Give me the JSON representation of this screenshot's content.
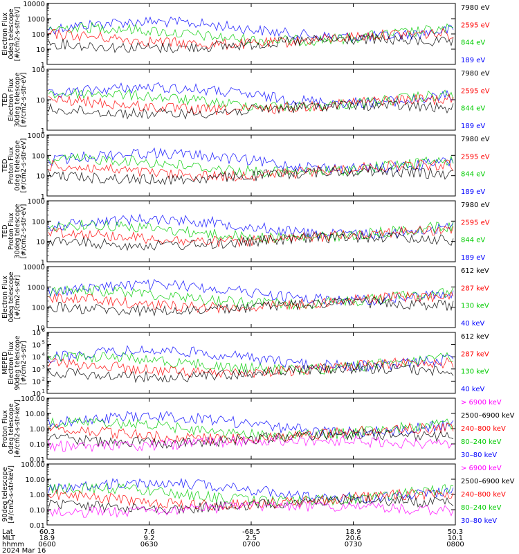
{
  "chart_data": [
    {
      "type": "line",
      "ylabel": [
        "Electron Flux",
        "0deg telescope",
        "[#/cm2-s-str-eV]"
      ],
      "yscale": "log",
      "ylim": [
        1,
        10000
      ],
      "ytick_labels": [
        "10000",
        "1000",
        "100",
        "10",
        "1"
      ],
      "legend": [
        {
          "label": "7980 eV",
          "color": "#000000"
        },
        {
          "label": "2595 eV",
          "color": "#ff0000"
        },
        {
          "label": "844 eV",
          "color": "#00cc00"
        },
        {
          "label": "189 eV",
          "color": "#0000ff"
        }
      ]
    },
    {
      "type": "line",
      "ylabel": [
        "TED",
        "Electron Flux",
        "30deg telescope",
        "[#/cm2-s-str-eV]"
      ],
      "yscale": "log",
      "ylim": [
        1,
        1000
      ],
      "ytick_labels": [
        "100",
        "10",
        "1"
      ],
      "legend": [
        {
          "label": "7980 eV",
          "color": "#000000"
        },
        {
          "label": "2595 eV",
          "color": "#ff0000"
        },
        {
          "label": "844 eV",
          "color": "#00cc00"
        },
        {
          "label": "189 eV",
          "color": "#0000ff"
        }
      ]
    },
    {
      "type": "line",
      "ylabel": [
        "TED",
        "Proton Flux",
        "0deg telescope",
        "[#/cm2-s-str-eV]"
      ],
      "yscale": "log",
      "ylim": [
        1,
        1000
      ],
      "ytick_labels": [
        "1000",
        "100",
        "10",
        "1"
      ],
      "legend": [
        {
          "label": "7980 eV",
          "color": "#000000"
        },
        {
          "label": "2595 eV",
          "color": "#ff0000"
        },
        {
          "label": "844 eV",
          "color": "#00cc00"
        },
        {
          "label": "189 eV",
          "color": "#0000ff"
        }
      ]
    },
    {
      "type": "line",
      "ylabel": [
        "TED",
        "Proton Flux",
        "30deg telescope",
        "[#/cm2-s-str-eV]"
      ],
      "yscale": "log",
      "ylim": [
        1,
        1000
      ],
      "ytick_labels": [
        "1000",
        "100",
        "10",
        "1"
      ],
      "legend": [
        {
          "label": "7980 eV",
          "color": "#000000"
        },
        {
          "label": "2595 eV",
          "color": "#ff0000"
        },
        {
          "label": "844 eV",
          "color": "#00cc00"
        },
        {
          "label": "189 eV",
          "color": "#0000ff"
        }
      ]
    },
    {
      "type": "line",
      "ylabel": [
        "Electron Flux",
        "0deg telescope",
        "[#/cm2-s-str]"
      ],
      "yscale": "log",
      "ylim": [
        10,
        10000
      ],
      "ytick_labels": [
        "10000",
        "1000",
        "100",
        "10"
      ],
      "legend": [
        {
          "label": "612 keV",
          "color": "#000000"
        },
        {
          "label": "287 keV",
          "color": "#ff0000"
        },
        {
          "label": "130 keV",
          "color": "#00cc00"
        },
        {
          "label": "40 keV",
          "color": "#0000ff"
        }
      ]
    },
    {
      "type": "line",
      "ylabel": [
        "MEPED",
        "Electron Flux",
        "90deg telescope",
        "[#/cm2-s-str]"
      ],
      "yscale": "log",
      "ylim": [
        10,
        1000000
      ],
      "ytick_labels": [
        "10",
        "10",
        "10",
        "10",
        "10",
        "10"
      ],
      "ytick_exponents": [
        "6",
        "5",
        "4",
        "3",
        "2",
        "1"
      ],
      "legend": [
        {
          "label": "612 keV",
          "color": "#000000"
        },
        {
          "label": "287 keV",
          "color": "#ff0000"
        },
        {
          "label": "130 keV",
          "color": "#00cc00"
        },
        {
          "label": "40 keV",
          "color": "#0000ff"
        }
      ]
    },
    {
      "type": "line",
      "ylabel": [
        "Proton Flux",
        "0deg telescope",
        "[#/cm2-s-str-keV]"
      ],
      "yscale": "log",
      "ylim": [
        0.01,
        100
      ],
      "ytick_labels": [
        "100.00",
        "10.00",
        "1.00",
        "0.10",
        "0.01"
      ],
      "legend": [
        {
          "label": "> 6900 keV",
          "color": "#ff00ff"
        },
        {
          "label": "2500–6900 keV",
          "color": "#000000"
        },
        {
          "label": "240–800 keV",
          "color": "#ff0000"
        },
        {
          "label": "80–240 keV",
          "color": "#00cc00"
        },
        {
          "label": "30–80 keV",
          "color": "#0000ff"
        }
      ]
    },
    {
      "type": "line",
      "ylabel": [
        "90deg telescope",
        "[#/cm2-s-str-keV]"
      ],
      "yscale": "log",
      "ylim": [
        0.01,
        100
      ],
      "ytick_labels": [
        "100.00",
        "10.00",
        "1.00",
        "0.10",
        "0.01"
      ],
      "legend": [
        {
          "label": "> 6900 keV",
          "color": "#ff00ff"
        },
        {
          "label": "2500–6900 keV",
          "color": "#000000"
        },
        {
          "label": "240–800 keV",
          "color": "#ff0000"
        },
        {
          "label": "80–240 keV",
          "color": "#00cc00"
        },
        {
          "label": "30–80 keV",
          "color": "#0000ff"
        }
      ]
    }
  ],
  "x_axis": {
    "row_labels": [
      "Lat",
      "MLT",
      "hhmm"
    ],
    "ticks": [
      {
        "lat": "60.3",
        "mlt": "18.9",
        "hhmm": "0600"
      },
      {
        "lat": "7.6",
        "mlt": "9.2",
        "hhmm": "0630"
      },
      {
        "lat": "-68.5",
        "mlt": "2.5",
        "hhmm": "0700"
      },
      {
        "lat": "18.9",
        "mlt": "20.6",
        "hhmm": "0730"
      },
      {
        "lat": "50.3",
        "mlt": "10.1",
        "hhmm": "0800"
      }
    ],
    "date": "2024 Mar 16"
  }
}
